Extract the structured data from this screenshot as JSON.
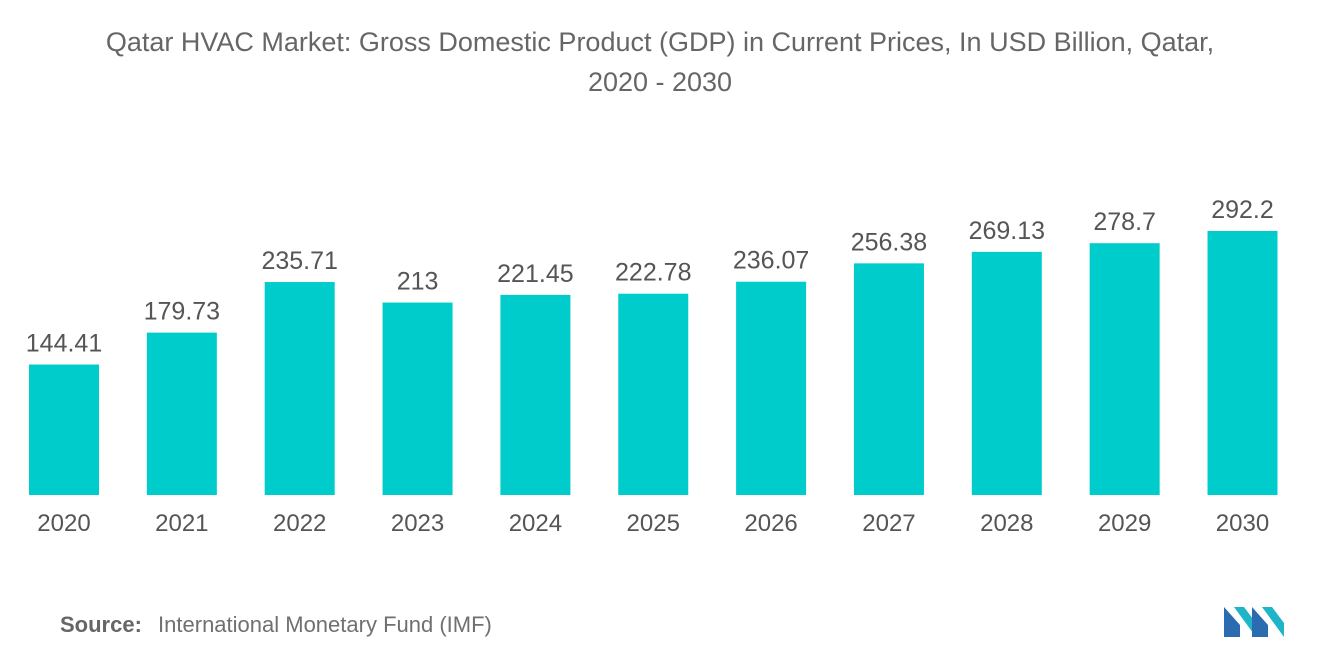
{
  "title_line1": "Qatar HVAC Market: Gross Domestic Product (GDP) in Current Prices, In USD Billion, Qatar,",
  "title_line2": "2020 - 2030",
  "source_label": "Source:",
  "source_text": "International Monetary Fund (IMF)",
  "colors": {
    "bar": "#00CCCC",
    "text": "#555555",
    "axis": "#dddddd"
  },
  "chart_data": {
    "type": "bar",
    "title": "Qatar HVAC Market: Gross Domestic Product (GDP) in Current Prices, In USD Billion, Qatar, 2020 - 2030",
    "xlabel": "",
    "ylabel": "",
    "categories": [
      "2020",
      "2021",
      "2022",
      "2023",
      "2024",
      "2025",
      "2026",
      "2027",
      "2028",
      "2029",
      "2030"
    ],
    "values": [
      144.41,
      179.73,
      235.71,
      213,
      221.45,
      222.78,
      236.07,
      256.38,
      269.13,
      278.7,
      292.2
    ],
    "value_labels": [
      "144.41",
      "179.73",
      "235.71",
      "213",
      "221.45",
      "222.78",
      "236.07",
      "256.38",
      "269.13",
      "278.7",
      "292.2"
    ],
    "ylim": [
      0,
      292.2
    ],
    "grid": false,
    "legend": "none"
  }
}
